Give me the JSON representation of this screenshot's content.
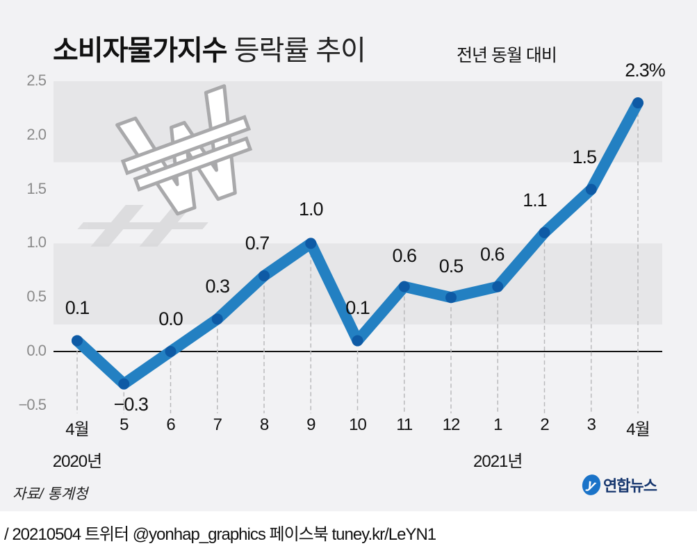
{
  "title": {
    "bold": "소비자물가지수",
    "light": "등락률 추이"
  },
  "subtitle": "전년 동월 대비",
  "y_axis": {
    "ticks": [
      "2.5",
      "2.0",
      "1.5",
      "1.0",
      "0.5",
      "0.0",
      "−0.5"
    ]
  },
  "x_axis": {
    "labels": [
      "4월",
      "5",
      "6",
      "7",
      "8",
      "9",
      "10",
      "11",
      "12",
      "1",
      "2",
      "3",
      "4월"
    ],
    "year_labels": [
      {
        "text": "2020년",
        "index": 0
      },
      {
        "text": "2021년",
        "index": 9
      }
    ]
  },
  "value_labels": [
    "0.1",
    "−0.3",
    "0.0",
    "0.3",
    "0.7",
    "1.0",
    "0.1",
    "0.6",
    "0.5",
    "0.6",
    "1.1",
    "1.5",
    "2.3%"
  ],
  "source": "자료/ 통계청",
  "logo": {
    "mark": "y",
    "name": "연합뉴스"
  },
  "footer": "/ 20210504   트위터 @yonhap_graphics  페이스북 tuney.kr/LeYN1",
  "colors": {
    "line": "#2380c2",
    "marker": "#0e5aa5",
    "band": "#e6e6e8",
    "background": "#f2f2f4"
  },
  "chart_data": {
    "type": "line",
    "title": "소비자물가지수 등락률 추이",
    "subtitle": "전년 동월 대비",
    "unit": "%",
    "categories": [
      "2020-04",
      "2020-05",
      "2020-06",
      "2020-07",
      "2020-08",
      "2020-09",
      "2020-10",
      "2020-11",
      "2020-12",
      "2021-01",
      "2021-02",
      "2021-03",
      "2021-04"
    ],
    "tick_labels": [
      "4월",
      "5",
      "6",
      "7",
      "8",
      "9",
      "10",
      "11",
      "12",
      "1",
      "2",
      "3",
      "4월"
    ],
    "series": [
      {
        "name": "소비자물가지수 등락률",
        "values": [
          0.1,
          -0.3,
          0.0,
          0.3,
          0.7,
          1.0,
          0.1,
          0.6,
          0.5,
          0.6,
          1.1,
          1.5,
          2.3
        ]
      }
    ],
    "xlabel": "",
    "ylabel": "",
    "ylim": [
      -0.5,
      2.5
    ],
    "yticks": [
      -0.5,
      0.0,
      0.5,
      1.0,
      1.5,
      2.0,
      2.5
    ],
    "grid": "alternating horizontal bands",
    "legend": "none",
    "source": "통계청"
  }
}
